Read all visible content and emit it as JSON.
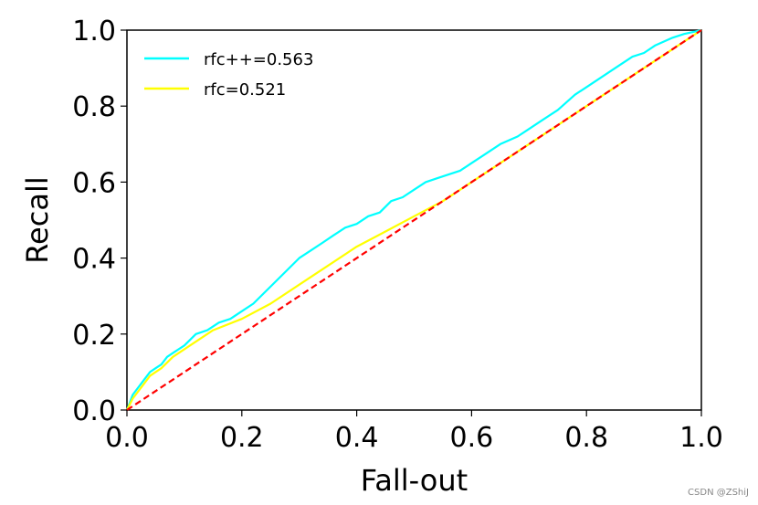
{
  "chart_data": {
    "type": "line",
    "xlabel": "Fall-out",
    "ylabel": "Recall",
    "xlim": [
      0,
      1
    ],
    "ylim": [
      0,
      1
    ],
    "xticks": [
      "0.0",
      "0.2",
      "0.4",
      "0.6",
      "0.8",
      "1.0"
    ],
    "yticks": [
      "0.0",
      "0.2",
      "0.4",
      "0.6",
      "0.8",
      "1.0"
    ],
    "grid": false,
    "legend_position": "top-left",
    "series": [
      {
        "name": "rfc++=0.563",
        "color": "#00ffff",
        "x": [
          0,
          0.01,
          0.02,
          0.03,
          0.04,
          0.05,
          0.06,
          0.07,
          0.08,
          0.1,
          0.12,
          0.14,
          0.16,
          0.18,
          0.2,
          0.22,
          0.24,
          0.26,
          0.28,
          0.3,
          0.32,
          0.34,
          0.36,
          0.38,
          0.4,
          0.42,
          0.44,
          0.46,
          0.48,
          0.5,
          0.52,
          0.54,
          0.56,
          0.58,
          0.6,
          0.62,
          0.65,
          0.68,
          0.7,
          0.72,
          0.75,
          0.78,
          0.8,
          0.82,
          0.85,
          0.88,
          0.9,
          0.92,
          0.95,
          0.97,
          1.0
        ],
        "y": [
          0,
          0.04,
          0.06,
          0.08,
          0.1,
          0.11,
          0.12,
          0.14,
          0.15,
          0.17,
          0.2,
          0.21,
          0.23,
          0.24,
          0.26,
          0.28,
          0.31,
          0.34,
          0.37,
          0.4,
          0.42,
          0.44,
          0.46,
          0.48,
          0.49,
          0.51,
          0.52,
          0.55,
          0.56,
          0.58,
          0.6,
          0.61,
          0.62,
          0.63,
          0.65,
          0.67,
          0.7,
          0.72,
          0.74,
          0.76,
          0.79,
          0.83,
          0.85,
          0.87,
          0.9,
          0.93,
          0.94,
          0.96,
          0.98,
          0.99,
          1.0
        ]
      },
      {
        "name": "rfc=0.521",
        "color": "#ffff00",
        "x": [
          0,
          0.01,
          0.02,
          0.03,
          0.04,
          0.06,
          0.08,
          0.1,
          0.12,
          0.15,
          0.2,
          0.25,
          0.3,
          0.35,
          0.4,
          0.45,
          0.5,
          0.55,
          0.6,
          0.65,
          0.7,
          0.75,
          0.8,
          0.85,
          0.9,
          0.95,
          1.0
        ],
        "y": [
          0,
          0.03,
          0.05,
          0.07,
          0.09,
          0.11,
          0.14,
          0.16,
          0.18,
          0.21,
          0.24,
          0.28,
          0.33,
          0.38,
          0.43,
          0.47,
          0.51,
          0.55,
          0.6,
          0.65,
          0.7,
          0.75,
          0.8,
          0.85,
          0.9,
          0.95,
          1.0
        ]
      },
      {
        "name": "",
        "color": "#ff0000",
        "dashed": true,
        "x": [
          0,
          1
        ],
        "y": [
          0,
          1
        ]
      }
    ]
  },
  "watermark": "CSDN @ZShiJ"
}
